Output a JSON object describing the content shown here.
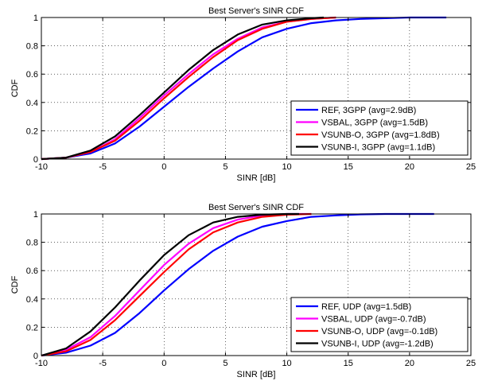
{
  "chart_data": [
    {
      "type": "line",
      "title": "Best Server's SINR CDF",
      "xlabel": "SINR [dB]",
      "ylabel": "CDF",
      "xlim": [
        -10,
        25
      ],
      "ylim": [
        0,
        1
      ],
      "xticks": [
        -10,
        -5,
        0,
        5,
        10,
        15,
        20,
        25
      ],
      "yticks": [
        0,
        0.2,
        0.4,
        0.6,
        0.8,
        1
      ],
      "xtick_labels": [
        "-10",
        "-5",
        "0",
        "5",
        "10",
        "15",
        "20",
        "25"
      ],
      "ytick_labels": [
        "0",
        "0.2",
        "0.4",
        "0.6",
        "0.8",
        "1"
      ],
      "grid": true,
      "legend_position": "bottom-right",
      "series": [
        {
          "name": "REF, 3GPP (avg=2.9dB)",
          "color": "#0000ff",
          "x": [
            -10,
            -8,
            -6,
            -4,
            -2,
            0,
            2,
            4,
            6,
            8,
            10,
            12,
            14,
            16,
            18,
            20,
            23
          ],
          "y": [
            0,
            0.01,
            0.04,
            0.11,
            0.23,
            0.37,
            0.51,
            0.64,
            0.76,
            0.86,
            0.92,
            0.96,
            0.98,
            0.99,
            0.995,
            1,
            1
          ]
        },
        {
          "name": "VSBAL, 3GPP (avg=1.5dB)",
          "color": "#ff00ff",
          "x": [
            -10,
            -8,
            -6,
            -4,
            -2,
            0,
            2,
            4,
            6,
            8,
            10,
            12,
            14
          ],
          "y": [
            0,
            0.01,
            0.05,
            0.14,
            0.29,
            0.45,
            0.6,
            0.74,
            0.85,
            0.93,
            0.97,
            0.99,
            1
          ]
        },
        {
          "name": "VSUNB-O, 3GPP (avg=1.8dB)",
          "color": "#ff0000",
          "x": [
            -10,
            -8,
            -6,
            -4,
            -2,
            0,
            2,
            4,
            6,
            8,
            10,
            12,
            14
          ],
          "y": [
            0,
            0.01,
            0.05,
            0.13,
            0.27,
            0.43,
            0.58,
            0.72,
            0.84,
            0.92,
            0.97,
            0.99,
            1
          ]
        },
        {
          "name": "VSUNB-I, 3GPP (avg=1.1dB)",
          "color": "#000000",
          "x": [
            -10,
            -8,
            -6,
            -4,
            -2,
            0,
            2,
            4,
            6,
            8,
            10,
            12,
            13
          ],
          "y": [
            0,
            0.01,
            0.06,
            0.16,
            0.31,
            0.47,
            0.63,
            0.77,
            0.88,
            0.95,
            0.98,
            0.995,
            1
          ]
        }
      ]
    },
    {
      "type": "line",
      "title": "Best Server's SINR CDF",
      "xlabel": "SINR [dB]",
      "ylabel": "CDF",
      "xlim": [
        -10,
        25
      ],
      "ylim": [
        0,
        1
      ],
      "xticks": [
        -10,
        -5,
        0,
        5,
        10,
        15,
        20,
        25
      ],
      "yticks": [
        0,
        0.2,
        0.4,
        0.6,
        0.8,
        1
      ],
      "xtick_labels": [
        "-10",
        "-5",
        "0",
        "5",
        "10",
        "15",
        "20",
        "25"
      ],
      "ytick_labels": [
        "0",
        "0.2",
        "0.4",
        "0.6",
        "0.8",
        "1"
      ],
      "grid": true,
      "legend_position": "bottom-right",
      "series": [
        {
          "name": "REF, UDP (avg=1.5dB)",
          "color": "#0000ff",
          "x": [
            -10,
            -8,
            -6,
            -4,
            -2,
            0,
            2,
            4,
            6,
            8,
            10,
            12,
            14,
            16,
            18,
            20,
            22
          ],
          "y": [
            0,
            0.02,
            0.07,
            0.16,
            0.3,
            0.46,
            0.61,
            0.74,
            0.84,
            0.91,
            0.95,
            0.98,
            0.99,
            0.997,
            1,
            1,
            1
          ]
        },
        {
          "name": "VSBAL, UDP (avg=-0.7dB)",
          "color": "#ff00ff",
          "x": [
            -10,
            -8,
            -6,
            -4,
            -2,
            0,
            2,
            4,
            6,
            8,
            10,
            12
          ],
          "y": [
            0,
            0.04,
            0.13,
            0.28,
            0.46,
            0.64,
            0.79,
            0.9,
            0.96,
            0.99,
            1,
            1
          ]
        },
        {
          "name": "VSUNB-O, UDP (avg=-0.1dB)",
          "color": "#ff0000",
          "x": [
            -10,
            -8,
            -6,
            -4,
            -2,
            0,
            2,
            4,
            6,
            8,
            10,
            12
          ],
          "y": [
            0,
            0.03,
            0.11,
            0.25,
            0.42,
            0.59,
            0.75,
            0.87,
            0.94,
            0.98,
            0.995,
            1
          ]
        },
        {
          "name": "VSUNB-I, UDP (avg=-1.2dB)",
          "color": "#000000",
          "x": [
            -10,
            -8,
            -6,
            -4,
            -2,
            0,
            2,
            4,
            6,
            8,
            10,
            11
          ],
          "y": [
            0,
            0.05,
            0.17,
            0.34,
            0.53,
            0.71,
            0.85,
            0.94,
            0.98,
            0.995,
            1,
            1
          ]
        }
      ]
    }
  ]
}
